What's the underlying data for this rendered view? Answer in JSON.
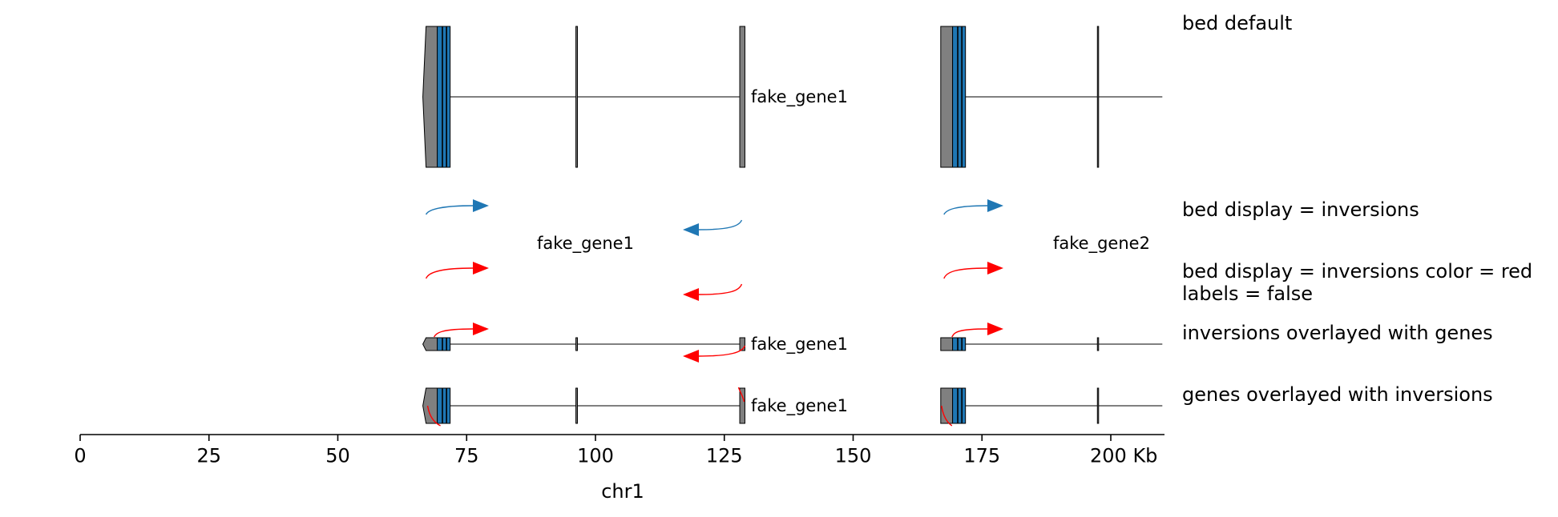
{
  "colors": {
    "utr": "#808080",
    "cds": "#1f77b4",
    "edge": "#000000",
    "arrow_blue": "#1f77b4",
    "arrow_red": "#ff0000"
  },
  "axis": {
    "chrom": "chr1",
    "unit": "Kb",
    "range_kb": [
      0,
      210
    ],
    "ticks": [
      {
        "value": 0,
        "label": "0"
      },
      {
        "value": 25,
        "label": "25"
      },
      {
        "value": 50,
        "label": "50"
      },
      {
        "value": 75,
        "label": "75"
      },
      {
        "value": 100,
        "label": "100"
      },
      {
        "value": 125,
        "label": "125"
      },
      {
        "value": 150,
        "label": "150"
      },
      {
        "value": 175,
        "label": "175"
      },
      {
        "value": 200,
        "label": "200 Kb"
      }
    ]
  },
  "genes": [
    {
      "name": "fake_gene1",
      "start_kb": 66.5,
      "end_kb": 129.0,
      "strand": "-",
      "exons_kb": [
        [
          66.5,
          71.8
        ],
        [
          96.2,
          96.5
        ],
        [
          128.0,
          129.0
        ]
      ],
      "cds_kb": [
        69.3,
        71.8
      ],
      "cds_stripes_kb": [
        70.3,
        71.1
      ]
    },
    {
      "name": "fake_gene2",
      "start_kb": 167.0,
      "end_kb": 210.0,
      "strand": "+",
      "exons_kb": [
        [
          167.0,
          171.8
        ],
        [
          197.4,
          197.6
        ]
      ],
      "cds_kb": [
        169.3,
        171.8
      ],
      "cds_stripes_kb": [
        170.3,
        171.1
      ]
    }
  ],
  "tracks": [
    {
      "id": "bed-default",
      "lines": [
        "bed default"
      ],
      "display": "genes",
      "labels": true
    },
    {
      "id": "inversions",
      "lines": [
        "bed display = inversions"
      ],
      "display": "inversions",
      "color": "#1f77b4",
      "labels": true
    },
    {
      "id": "inversions-red",
      "lines": [
        "bed display = inversions color = red",
        "labels = false"
      ],
      "display": "inversions",
      "color": "#ff0000",
      "labels": false
    },
    {
      "id": "inv-over-genes",
      "lines": [
        "inversions overlayed with genes"
      ],
      "display": "genes+inversions",
      "labels": true
    },
    {
      "id": "genes-over-inv",
      "lines": [
        "genes overlayed with inversions"
      ],
      "display": "genes+inversions-below",
      "labels": true
    }
  ]
}
